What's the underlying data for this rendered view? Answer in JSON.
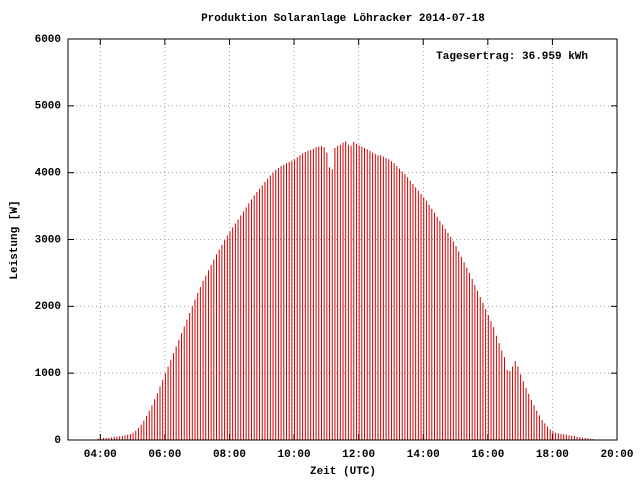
{
  "chart_data": {
    "type": "impulses",
    "title": "Produktion Solaranlage Löhracker 2014-07-18",
    "xlabel": "Zeit (UTC)",
    "ylabel": "Leistung [W]",
    "annotation": "Tagesertrag: 36.959 kWh",
    "color": "#cc0000",
    "grid": true,
    "xlim": [
      "03:00",
      "20:00"
    ],
    "xticks": [
      "04:00",
      "06:00",
      "08:00",
      "10:00",
      "12:00",
      "14:00",
      "16:00",
      "18:00",
      "20:00"
    ],
    "ylim": [
      0,
      6000
    ],
    "yticks": [
      0,
      1000,
      2000,
      3000,
      4000,
      5000,
      6000
    ],
    "x": [
      "03:55",
      "04:00",
      "04:05",
      "04:10",
      "04:15",
      "04:20",
      "04:25",
      "04:30",
      "04:35",
      "04:40",
      "04:45",
      "04:50",
      "04:55",
      "05:00",
      "05:05",
      "05:10",
      "05:15",
      "05:20",
      "05:25",
      "05:30",
      "05:35",
      "05:40",
      "05:45",
      "05:50",
      "05:55",
      "06:00",
      "06:05",
      "06:10",
      "06:15",
      "06:20",
      "06:25",
      "06:30",
      "06:35",
      "06:40",
      "06:45",
      "06:50",
      "06:55",
      "07:00",
      "07:05",
      "07:10",
      "07:15",
      "07:20",
      "07:25",
      "07:30",
      "07:35",
      "07:40",
      "07:45",
      "07:50",
      "07:55",
      "08:00",
      "08:05",
      "08:10",
      "08:15",
      "08:20",
      "08:25",
      "08:30",
      "08:35",
      "08:40",
      "08:45",
      "08:50",
      "08:55",
      "09:00",
      "09:05",
      "09:10",
      "09:15",
      "09:20",
      "09:25",
      "09:30",
      "09:35",
      "09:40",
      "09:45",
      "09:50",
      "09:55",
      "10:00",
      "10:05",
      "10:10",
      "10:15",
      "10:20",
      "10:25",
      "10:30",
      "10:35",
      "10:40",
      "10:45",
      "10:50",
      "10:55",
      "11:00",
      "11:05",
      "11:10",
      "11:15",
      "11:20",
      "11:25",
      "11:30",
      "11:35",
      "11:40",
      "11:45",
      "11:50",
      "11:55",
      "12:00",
      "12:05",
      "12:10",
      "12:15",
      "12:20",
      "12:25",
      "12:30",
      "12:35",
      "12:40",
      "12:45",
      "12:50",
      "12:55",
      "13:00",
      "13:05",
      "13:10",
      "13:15",
      "13:20",
      "13:25",
      "13:30",
      "13:35",
      "13:40",
      "13:45",
      "13:50",
      "13:55",
      "14:00",
      "14:05",
      "14:10",
      "14:15",
      "14:20",
      "14:25",
      "14:30",
      "14:35",
      "14:40",
      "14:45",
      "14:50",
      "14:55",
      "15:00",
      "15:05",
      "15:10",
      "15:15",
      "15:20",
      "15:25",
      "15:30",
      "15:35",
      "15:40",
      "15:45",
      "15:50",
      "15:55",
      "16:00",
      "16:05",
      "16:10",
      "16:15",
      "16:20",
      "16:25",
      "16:30",
      "16:35",
      "16:40",
      "16:45",
      "16:50",
      "16:55",
      "17:00",
      "17:05",
      "17:10",
      "17:15",
      "17:20",
      "17:25",
      "17:30",
      "17:35",
      "17:40",
      "17:45",
      "17:50",
      "17:55",
      "18:00",
      "18:05",
      "18:10",
      "18:15",
      "18:20",
      "18:25",
      "18:30",
      "18:35",
      "18:40",
      "18:45",
      "18:50",
      "18:55",
      "19:00",
      "19:05",
      "19:10",
      "19:15"
    ],
    "values": [
      20,
      25,
      30,
      30,
      35,
      40,
      45,
      50,
      55,
      60,
      70,
      80,
      90,
      110,
      140,
      180,
      230,
      290,
      360,
      440,
      520,
      610,
      700,
      800,
      900,
      1000,
      1100,
      1200,
      1300,
      1400,
      1500,
      1600,
      1700,
      1800,
      1900,
      2000,
      2100,
      2200,
      2290,
      2380,
      2460,
      2540,
      2620,
      2700,
      2780,
      2850,
      2920,
      2990,
      3060,
      3120,
      3180,
      3240,
      3300,
      3360,
      3420,
      3480,
      3540,
      3600,
      3660,
      3710,
      3760,
      3810,
      3860,
      3910,
      3960,
      4000,
      4040,
      4070,
      4100,
      4120,
      4140,
      4160,
      4180,
      4200,
      4230,
      4260,
      4290,
      4310,
      4330,
      4340,
      4360,
      4380,
      4390,
      4400,
      4380,
      4300,
      4080,
      4050,
      4370,
      4400,
      4420,
      4450,
      4470,
      4420,
      4400,
      4460,
      4430,
      4410,
      4390,
      4370,
      4350,
      4330,
      4300,
      4280,
      4260,
      4260,
      4240,
      4220,
      4200,
      4170,
      4140,
      4100,
      4060,
      4020,
      3980,
      3930,
      3880,
      3830,
      3780,
      3730,
      3680,
      3630,
      3580,
      3520,
      3460,
      3400,
      3340,
      3280,
      3220,
      3160,
      3100,
      3040,
      2970,
      2900,
      2820,
      2740,
      2660,
      2580,
      2500,
      2410,
      2320,
      2230,
      2140,
      2050,
      1960,
      1870,
      1780,
      1690,
      1560,
      1450,
      1340,
      1240,
      1050,
      1030,
      1100,
      1180,
      1100,
      980,
      880,
      780,
      690,
      600,
      520,
      440,
      370,
      300,
      250,
      200,
      160,
      130,
      110,
      100,
      90,
      85,
      80,
      70,
      65,
      60,
      50,
      45,
      35,
      30,
      25,
      20,
      15
    ]
  }
}
